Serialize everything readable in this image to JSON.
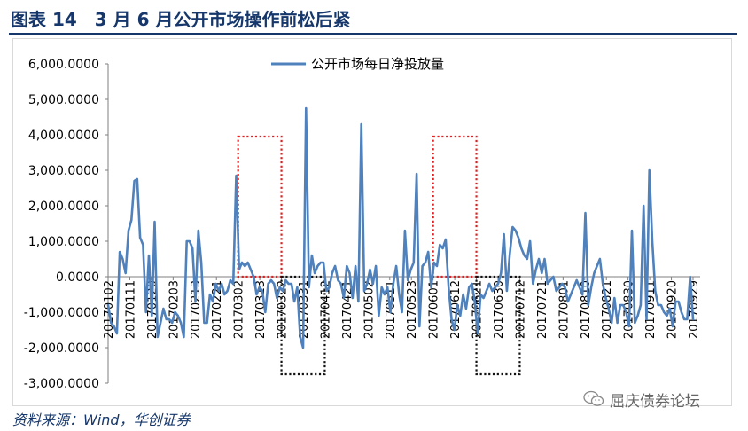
{
  "figure": {
    "title": "图表 14　3 月 6 月公开市场操作前松后紧",
    "source": "资料来源：Wind，华创证券",
    "watermark": "屈庆债券论坛"
  },
  "colors": {
    "line": "#4f81bd",
    "title": "#16376b",
    "red_box": "#e02020",
    "black_box": "#111111",
    "grid": "#bfbfbf"
  },
  "chart_data": {
    "type": "line",
    "title": "",
    "xlabel": "",
    "ylabel": "",
    "ylim": [
      -3000,
      6000
    ],
    "grid": false,
    "legend_position": "top-center",
    "y_ticks": [
      "6,000.0000",
      "5,000.0000",
      "4,000.0000",
      "3,000.0000",
      "2,000.0000",
      "1,000.0000",
      "0.0000",
      "-1,000.0000",
      "-2,000.0000",
      "-3,000.0000"
    ],
    "y_tick_values": [
      6000,
      5000,
      4000,
      3000,
      2000,
      1000,
      0,
      -1000,
      -2000,
      -3000
    ],
    "x_ticks": [
      "20170102",
      "20170111",
      "20170120",
      "20170203",
      "20170213",
      "20170221",
      "20170302",
      "20170313",
      "20170322",
      "20170331",
      "20170412",
      "20170421",
      "20170502",
      "20170511",
      "20170523",
      "20170601",
      "20170612",
      "20170621",
      "20170630",
      "20170712",
      "20170721",
      "20170801",
      "20170810",
      "20170821",
      "20170830",
      "20170911",
      "20170920",
      "20170929"
    ],
    "series": [
      {
        "name": "公开市场每日净投放量",
        "values": [
          -800,
          -1300,
          -1400,
          -1600,
          700,
          500,
          100,
          1300,
          1600,
          2700,
          2750,
          1100,
          900,
          -1000,
          600,
          -1100,
          1550,
          -1700,
          -1300,
          -900,
          -1200,
          -1200,
          -1300,
          -1000,
          -1100,
          -1300,
          -1700,
          1000,
          1000,
          800,
          -700,
          1300,
          400,
          -1300,
          -1300,
          -500,
          -700,
          -200,
          -400,
          -200,
          -500,
          -400,
          -100,
          -200,
          2850,
          200,
          400,
          300,
          400,
          200,
          0,
          -500,
          -300,
          -400,
          -1000,
          -200,
          -100,
          -200,
          -600,
          -300,
          -400,
          -100,
          -200,
          -200,
          -700,
          -300,
          -1700,
          -2000,
          4750,
          -300,
          600,
          100,
          300,
          400,
          400,
          -400,
          -300,
          100,
          300,
          -100,
          -200,
          -600,
          300,
          100,
          -600,
          300,
          -700,
          4300,
          -400,
          -200,
          200,
          -200,
          300,
          -1100,
          -300,
          -500,
          -300,
          -1000,
          -200,
          300,
          -500,
          -1000,
          1300,
          -100,
          200,
          400,
          2900,
          -1400,
          300,
          400,
          700,
          -300,
          400,
          300,
          900,
          800,
          1050,
          -300,
          -1200,
          -1500,
          -800,
          -1100,
          -500,
          -900,
          -300,
          -200,
          -700,
          -1600,
          -500,
          -600,
          -400,
          -200,
          -400,
          -300,
          -200,
          100,
          1200,
          -400,
          600,
          1400,
          1300,
          1100,
          800,
          600,
          500,
          1000,
          -200,
          200,
          500,
          100,
          500,
          -200,
          -100,
          0,
          -400,
          -300,
          -200,
          -300,
          -700,
          -500,
          -300,
          -100,
          -300,
          -500,
          1800,
          -800,
          -300,
          100,
          300,
          500,
          -200,
          -600,
          -900,
          -1300,
          -600,
          -1300,
          -800,
          -800,
          -1000,
          -1400,
          1300,
          -1300,
          -1100,
          -800,
          2000,
          -1200,
          3000,
          1000,
          -400,
          -800,
          -800,
          -1000,
          -1100,
          -900,
          -1400,
          -700,
          -700,
          -1000,
          -1200,
          -1200,
          0,
          -1200
        ]
      }
    ],
    "annotations": [
      {
        "shape": "dotted-rectangle",
        "color": "red",
        "x_start": "20170302",
        "x_end": "20170322",
        "y_range": [
          0,
          3950
        ]
      },
      {
        "shape": "dotted-rectangle",
        "color": "black",
        "x_start": "20170322",
        "x_end": "20170412",
        "y_range": [
          -2750,
          0
        ]
      },
      {
        "shape": "dotted-rectangle",
        "color": "red",
        "x_start": "20170601",
        "x_end": "20170621",
        "y_range": [
          0,
          3950
        ]
      },
      {
        "shape": "dotted-rectangle",
        "color": "black",
        "x_start": "20170621",
        "x_end": "20170712",
        "y_range": [
          -2750,
          0
        ]
      }
    ]
  }
}
